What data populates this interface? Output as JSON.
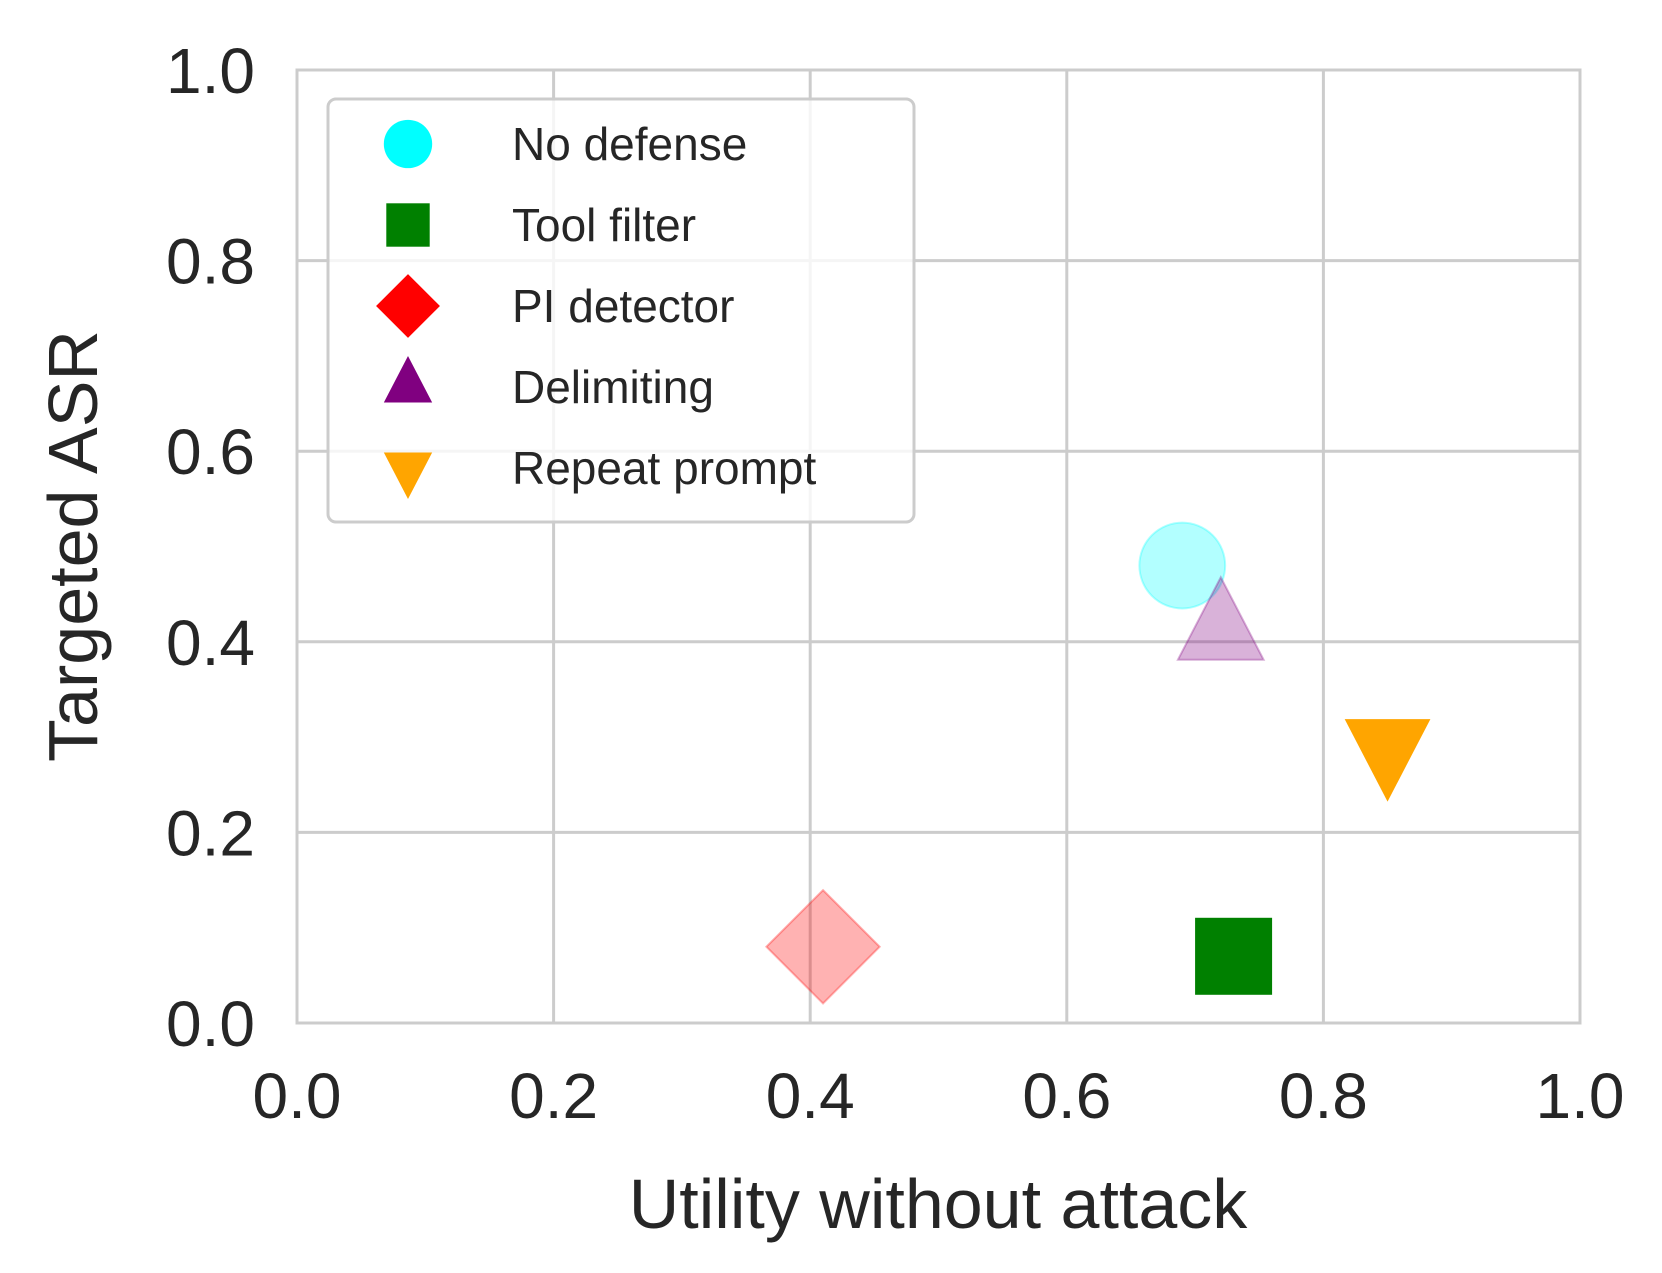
{
  "chart_data": {
    "type": "scatter",
    "title": "",
    "xlabel": "Utility without attack",
    "ylabel": "Targeted ASR",
    "xlim": [
      0.0,
      1.0
    ],
    "ylim": [
      0.0,
      1.0
    ],
    "x_ticks": [
      "0.0",
      "0.2",
      "0.4",
      "0.6",
      "0.8",
      "1.0"
    ],
    "y_ticks": [
      "0.0",
      "0.2",
      "0.4",
      "0.6",
      "0.8",
      "1.0"
    ],
    "grid": true,
    "legend_position": "top-left",
    "series": [
      {
        "name": "No defense",
        "marker": "circle",
        "color": "#00ffff",
        "point_alpha": 0.3,
        "x": 0.69,
        "y": 0.48
      },
      {
        "name": "Tool filter",
        "marker": "square",
        "color": "#008000",
        "point_alpha": 1.0,
        "x": 0.73,
        "y": 0.07
      },
      {
        "name": "PI detector",
        "marker": "diamond",
        "color": "#ff0000",
        "point_alpha": 0.3,
        "x": 0.41,
        "y": 0.08
      },
      {
        "name": "Delimiting",
        "marker": "triangle-up",
        "color": "#800080",
        "point_alpha": 0.3,
        "x": 0.72,
        "y": 0.41
      },
      {
        "name": "Repeat prompt",
        "marker": "triangle-down",
        "color": "#ffa500",
        "point_alpha": 1.0,
        "x": 0.85,
        "y": 0.29
      }
    ]
  }
}
